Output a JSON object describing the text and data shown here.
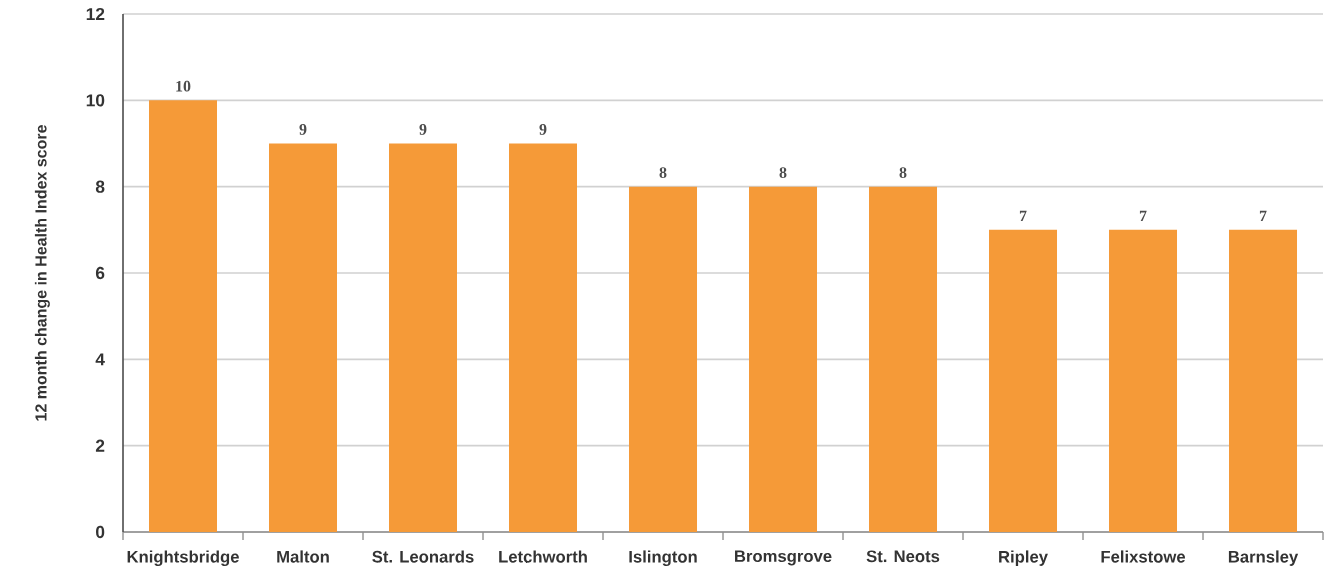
{
  "chart_data": {
    "type": "bar",
    "ylabel": "12 month change in Health Index score",
    "categories": [
      "Knightsbridge",
      "Malton",
      "St. Leonards",
      "Letchworth",
      "Islington",
      "Bromsgrove",
      "St. Neots",
      "Ripley",
      "Felixstowe",
      "Barnsley"
    ],
    "values": [
      10,
      9,
      9,
      9,
      8,
      8,
      8,
      7,
      7,
      7
    ],
    "color": "#f59a38",
    "ylim": [
      0,
      12
    ],
    "yticks": [
      0,
      2,
      4,
      6,
      8,
      10,
      12
    ],
    "grid": "y",
    "data_labels": true
  }
}
